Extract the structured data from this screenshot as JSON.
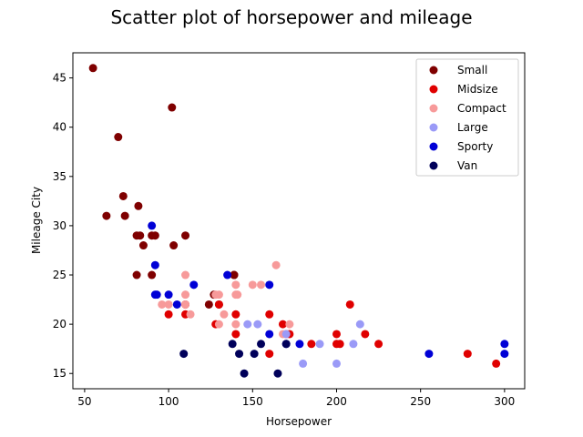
{
  "chart_data": {
    "type": "scatter",
    "title": "Scatter plot of horsepower and mileage",
    "xlabel": "Horsepower",
    "ylabel": "Mileage City",
    "xlim": [
      43,
      312
    ],
    "ylim": [
      13.45,
      47.55
    ],
    "xticks": [
      50,
      100,
      150,
      200,
      250,
      300
    ],
    "yticks": [
      15,
      20,
      25,
      30,
      35,
      40,
      45
    ],
    "grid": false,
    "legend_position": "top-right",
    "series": [
      {
        "name": "Small",
        "color": "#7f0000",
        "points": [
          [
            55,
            46
          ],
          [
            102,
            42
          ],
          [
            70,
            39
          ],
          [
            73,
            33
          ],
          [
            82,
            32
          ],
          [
            63,
            31
          ],
          [
            74,
            31
          ],
          [
            90,
            29
          ],
          [
            92,
            29
          ],
          [
            81,
            29
          ],
          [
            83,
            29
          ],
          [
            110,
            29
          ],
          [
            85,
            28
          ],
          [
            103,
            28
          ],
          [
            81,
            25
          ],
          [
            90,
            25
          ],
          [
            139,
            25
          ],
          [
            124,
            22
          ],
          [
            127,
            23
          ],
          [
            130,
            22
          ],
          [
            139,
            25
          ]
        ]
      },
      {
        "name": "Midsize",
        "color": "#e00000",
        "points": [
          [
            100,
            21
          ],
          [
            110,
            22
          ],
          [
            110,
            21
          ],
          [
            128,
            20
          ],
          [
            130,
            22
          ],
          [
            140,
            21
          ],
          [
            140,
            19
          ],
          [
            160,
            21
          ],
          [
            160,
            17
          ],
          [
            168,
            20
          ],
          [
            170,
            19
          ],
          [
            172,
            19
          ],
          [
            185,
            18
          ],
          [
            200,
            19
          ],
          [
            200,
            18
          ],
          [
            202,
            18
          ],
          [
            208,
            22
          ],
          [
            217,
            19
          ],
          [
            225,
            18
          ],
          [
            278,
            17
          ],
          [
            295,
            16
          ]
        ]
      },
      {
        "name": "Compact",
        "color": "#f79a9a",
        "points": [
          [
            96,
            22
          ],
          [
            100,
            22
          ],
          [
            110,
            23
          ],
          [
            110,
            25
          ],
          [
            110,
            22
          ],
          [
            113,
            21
          ],
          [
            128,
            23
          ],
          [
            130,
            23
          ],
          [
            130,
            20
          ],
          [
            133,
            21
          ],
          [
            140,
            24
          ],
          [
            140,
            23
          ],
          [
            140,
            20
          ],
          [
            141,
            23
          ],
          [
            150,
            24
          ],
          [
            155,
            24
          ],
          [
            164,
            26
          ],
          [
            168,
            19
          ],
          [
            172,
            20
          ]
        ]
      },
      {
        "name": "Large",
        "color": "#9a9af7",
        "points": [
          [
            147,
            20
          ],
          [
            153,
            20
          ],
          [
            170,
            19
          ],
          [
            180,
            16
          ],
          [
            190,
            18
          ],
          [
            200,
            16
          ],
          [
            210,
            18
          ],
          [
            214,
            20
          ]
        ]
      },
      {
        "name": "Sporty",
        "color": "#0000d6",
        "points": [
          [
            90,
            30
          ],
          [
            92,
            26
          ],
          [
            92,
            23
          ],
          [
            93,
            23
          ],
          [
            100,
            23
          ],
          [
            105,
            22
          ],
          [
            115,
            24
          ],
          [
            135,
            25
          ],
          [
            160,
            24
          ],
          [
            160,
            19
          ],
          [
            170,
            18
          ],
          [
            178,
            18
          ],
          [
            255,
            17
          ],
          [
            300,
            18
          ],
          [
            300,
            17
          ]
        ]
      },
      {
        "name": "Van",
        "color": "#00005a",
        "points": [
          [
            109,
            17
          ],
          [
            138,
            18
          ],
          [
            142,
            17
          ],
          [
            145,
            15
          ],
          [
            151,
            17
          ],
          [
            155,
            18
          ],
          [
            165,
            15
          ],
          [
            170,
            18
          ]
        ]
      }
    ]
  }
}
